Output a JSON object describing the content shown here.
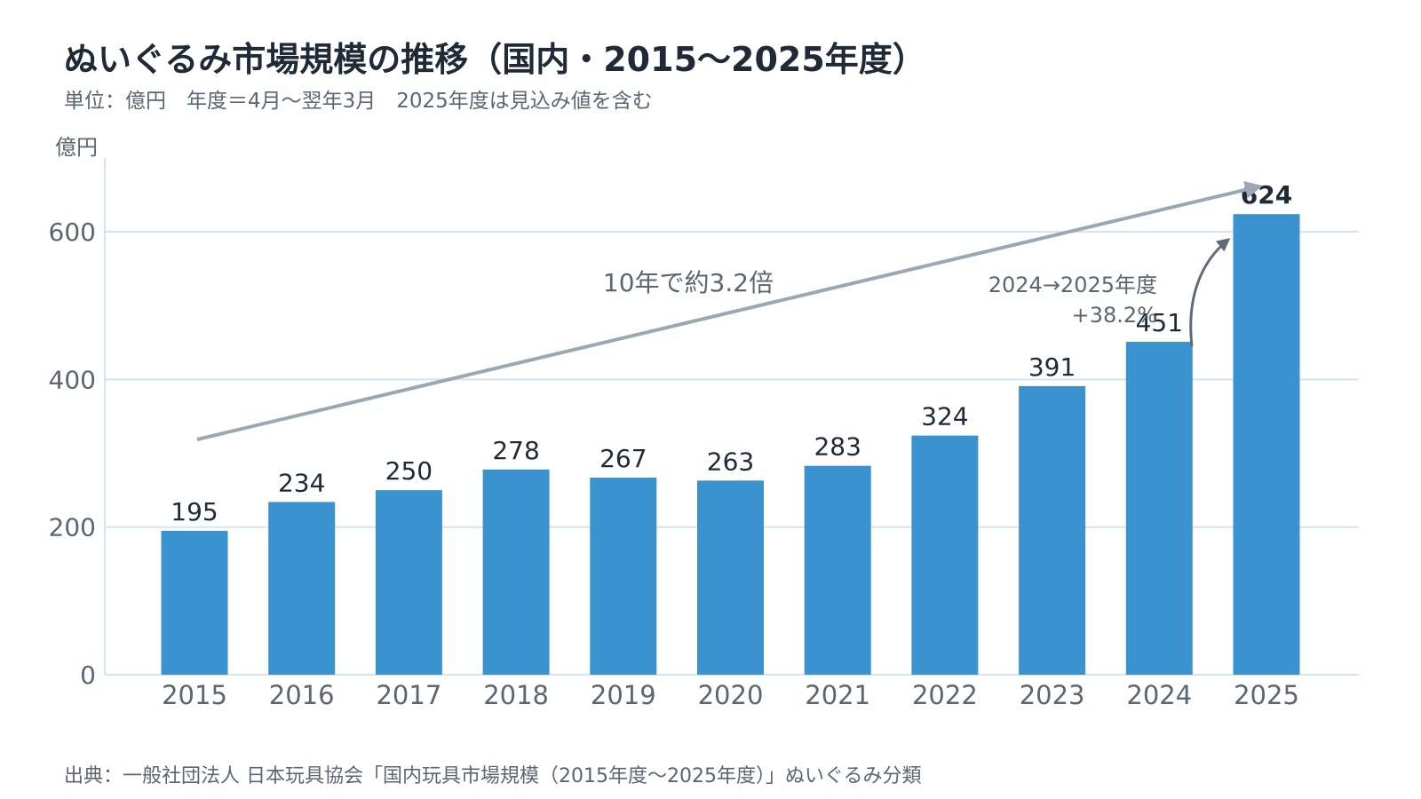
{
  "title": "ぬいぐるみ市場規模の推移（国内・2015〜2025年度）",
  "subtitle": "単位：億円　年度＝4月〜翌年3月　2025年度は見込み値を含む",
  "source": "出典：一般社団法人 日本玩具協会「国内玩具市場規模（2015年度〜2025年度）」ぬいぐるみ分類",
  "colors": {
    "bar": "#3a93cf",
    "grid": "#d7e3ee",
    "axis_text": "#5c6673",
    "label_text": "#1f2a36",
    "trend_arrow": "#9aa8b6",
    "growth_arrow": "#5f6c78"
  },
  "chart_data": {
    "type": "bar",
    "ylabel": "億円",
    "ylim": [
      0,
      700
    ],
    "yticks": [
      0,
      200,
      400,
      600
    ],
    "grid": true,
    "categories": [
      "2015",
      "2016",
      "2017",
      "2018",
      "2019",
      "2020",
      "2021",
      "2022",
      "2023",
      "2024",
      "2025"
    ],
    "values": [
      195,
      234,
      250,
      278,
      267,
      263,
      283,
      324,
      391,
      451,
      624
    ],
    "annotations": {
      "trend": "10年で約3.2倍",
      "growth_line1": "2024→2025年度",
      "growth_line2": "+38.2%"
    }
  }
}
